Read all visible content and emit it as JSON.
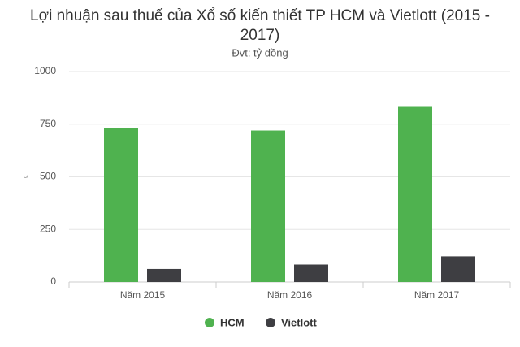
{
  "chart_data": {
    "type": "bar",
    "title": "Lợi nhuận sau thuế của Xổ số kiến thiết TP HCM và Vietlott (2015 - 2017)",
    "subtitle": "Đvt: tỷ đồng",
    "y_label": "₫",
    "categories": [
      "Năm 2015",
      "Năm 2016",
      "Năm 2017"
    ],
    "series": [
      {
        "name": "HCM",
        "color": "#4fb24f",
        "values": [
          733,
          720,
          832
        ]
      },
      {
        "name": "Vietlott",
        "color": "#3e3e42",
        "values": [
          62,
          83,
          122
        ]
      }
    ],
    "ylim": [
      0,
      1000
    ],
    "yticks": [
      0,
      250,
      500,
      750,
      1000
    ],
    "grid": true,
    "legend": "bottom"
  }
}
